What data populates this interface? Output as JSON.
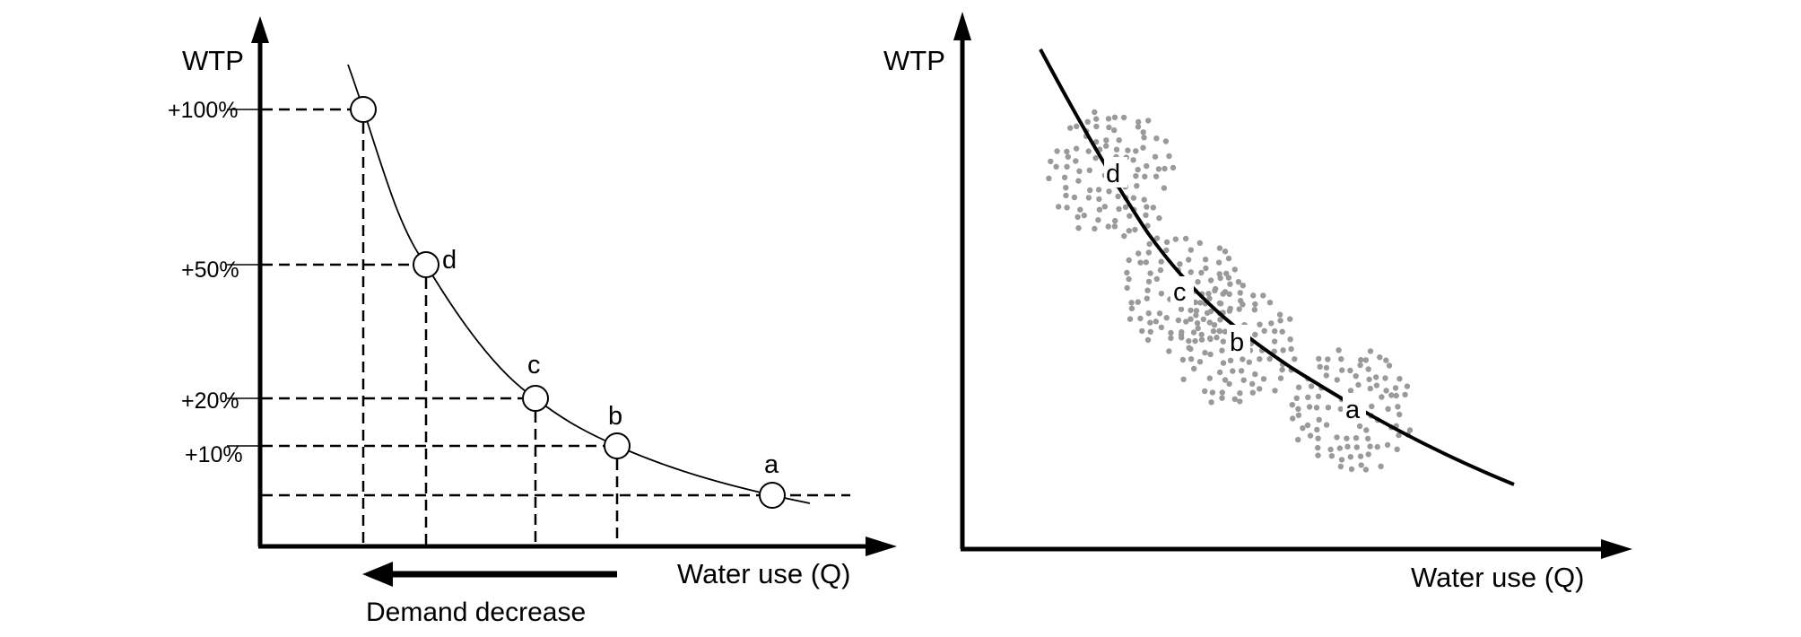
{
  "left_panel": {
    "y_axis_label": "WTP",
    "x_axis_label": "Water use (Q)",
    "y_ticks": [
      "+100%",
      "+50%",
      "+20%",
      "+10%"
    ],
    "points": [
      "d",
      "c",
      "b",
      "a"
    ],
    "arrow_label": "Demand decrease"
  },
  "right_panel": {
    "y_axis_label": "WTP",
    "x_axis_label": "Water use (Q)",
    "points": [
      "d",
      "c",
      "b",
      "a"
    ]
  },
  "colors": {
    "line": "#000000",
    "dots": "#9a9a9a",
    "background": "#ffffff"
  }
}
